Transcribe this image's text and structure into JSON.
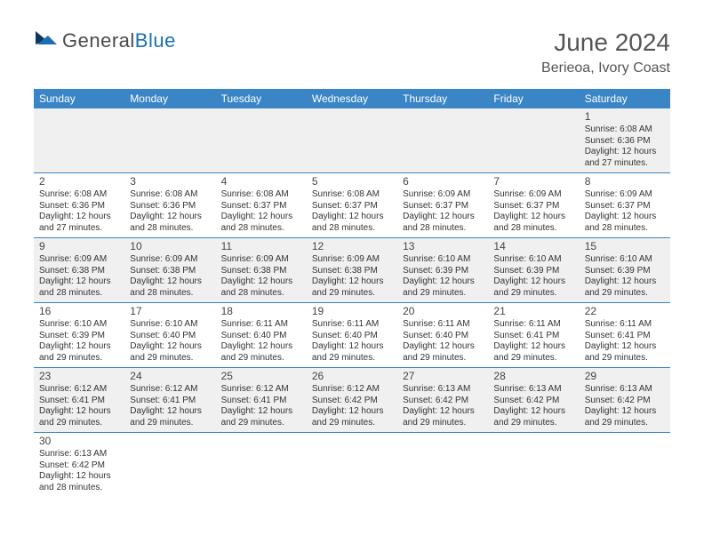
{
  "brand": {
    "part1": "General",
    "part2": "Blue"
  },
  "title": "June 2024",
  "location": "Berieoa, Ivory Coast",
  "colors": {
    "header_bg": "#3a85c6",
    "row_alt": "#f0f0f0",
    "text": "#333333",
    "brand_blue": "#1a6fb5"
  },
  "dayHeaders": [
    "Sunday",
    "Monday",
    "Tuesday",
    "Wednesday",
    "Thursday",
    "Friday",
    "Saturday"
  ],
  "weeks": [
    [
      null,
      null,
      null,
      null,
      null,
      null,
      {
        "n": "1",
        "sr": "Sunrise: 6:08 AM",
        "ss": "Sunset: 6:36 PM",
        "d1": "Daylight: 12 hours",
        "d2": "and 27 minutes."
      }
    ],
    [
      {
        "n": "2",
        "sr": "Sunrise: 6:08 AM",
        "ss": "Sunset: 6:36 PM",
        "d1": "Daylight: 12 hours",
        "d2": "and 27 minutes."
      },
      {
        "n": "3",
        "sr": "Sunrise: 6:08 AM",
        "ss": "Sunset: 6:36 PM",
        "d1": "Daylight: 12 hours",
        "d2": "and 28 minutes."
      },
      {
        "n": "4",
        "sr": "Sunrise: 6:08 AM",
        "ss": "Sunset: 6:37 PM",
        "d1": "Daylight: 12 hours",
        "d2": "and 28 minutes."
      },
      {
        "n": "5",
        "sr": "Sunrise: 6:08 AM",
        "ss": "Sunset: 6:37 PM",
        "d1": "Daylight: 12 hours",
        "d2": "and 28 minutes."
      },
      {
        "n": "6",
        "sr": "Sunrise: 6:09 AM",
        "ss": "Sunset: 6:37 PM",
        "d1": "Daylight: 12 hours",
        "d2": "and 28 minutes."
      },
      {
        "n": "7",
        "sr": "Sunrise: 6:09 AM",
        "ss": "Sunset: 6:37 PM",
        "d1": "Daylight: 12 hours",
        "d2": "and 28 minutes."
      },
      {
        "n": "8",
        "sr": "Sunrise: 6:09 AM",
        "ss": "Sunset: 6:37 PM",
        "d1": "Daylight: 12 hours",
        "d2": "and 28 minutes."
      }
    ],
    [
      {
        "n": "9",
        "sr": "Sunrise: 6:09 AM",
        "ss": "Sunset: 6:38 PM",
        "d1": "Daylight: 12 hours",
        "d2": "and 28 minutes."
      },
      {
        "n": "10",
        "sr": "Sunrise: 6:09 AM",
        "ss": "Sunset: 6:38 PM",
        "d1": "Daylight: 12 hours",
        "d2": "and 28 minutes."
      },
      {
        "n": "11",
        "sr": "Sunrise: 6:09 AM",
        "ss": "Sunset: 6:38 PM",
        "d1": "Daylight: 12 hours",
        "d2": "and 28 minutes."
      },
      {
        "n": "12",
        "sr": "Sunrise: 6:09 AM",
        "ss": "Sunset: 6:38 PM",
        "d1": "Daylight: 12 hours",
        "d2": "and 29 minutes."
      },
      {
        "n": "13",
        "sr": "Sunrise: 6:10 AM",
        "ss": "Sunset: 6:39 PM",
        "d1": "Daylight: 12 hours",
        "d2": "and 29 minutes."
      },
      {
        "n": "14",
        "sr": "Sunrise: 6:10 AM",
        "ss": "Sunset: 6:39 PM",
        "d1": "Daylight: 12 hours",
        "d2": "and 29 minutes."
      },
      {
        "n": "15",
        "sr": "Sunrise: 6:10 AM",
        "ss": "Sunset: 6:39 PM",
        "d1": "Daylight: 12 hours",
        "d2": "and 29 minutes."
      }
    ],
    [
      {
        "n": "16",
        "sr": "Sunrise: 6:10 AM",
        "ss": "Sunset: 6:39 PM",
        "d1": "Daylight: 12 hours",
        "d2": "and 29 minutes."
      },
      {
        "n": "17",
        "sr": "Sunrise: 6:10 AM",
        "ss": "Sunset: 6:40 PM",
        "d1": "Daylight: 12 hours",
        "d2": "and 29 minutes."
      },
      {
        "n": "18",
        "sr": "Sunrise: 6:11 AM",
        "ss": "Sunset: 6:40 PM",
        "d1": "Daylight: 12 hours",
        "d2": "and 29 minutes."
      },
      {
        "n": "19",
        "sr": "Sunrise: 6:11 AM",
        "ss": "Sunset: 6:40 PM",
        "d1": "Daylight: 12 hours",
        "d2": "and 29 minutes."
      },
      {
        "n": "20",
        "sr": "Sunrise: 6:11 AM",
        "ss": "Sunset: 6:40 PM",
        "d1": "Daylight: 12 hours",
        "d2": "and 29 minutes."
      },
      {
        "n": "21",
        "sr": "Sunrise: 6:11 AM",
        "ss": "Sunset: 6:41 PM",
        "d1": "Daylight: 12 hours",
        "d2": "and 29 minutes."
      },
      {
        "n": "22",
        "sr": "Sunrise: 6:11 AM",
        "ss": "Sunset: 6:41 PM",
        "d1": "Daylight: 12 hours",
        "d2": "and 29 minutes."
      }
    ],
    [
      {
        "n": "23",
        "sr": "Sunrise: 6:12 AM",
        "ss": "Sunset: 6:41 PM",
        "d1": "Daylight: 12 hours",
        "d2": "and 29 minutes."
      },
      {
        "n": "24",
        "sr": "Sunrise: 6:12 AM",
        "ss": "Sunset: 6:41 PM",
        "d1": "Daylight: 12 hours",
        "d2": "and 29 minutes."
      },
      {
        "n": "25",
        "sr": "Sunrise: 6:12 AM",
        "ss": "Sunset: 6:41 PM",
        "d1": "Daylight: 12 hours",
        "d2": "and 29 minutes."
      },
      {
        "n": "26",
        "sr": "Sunrise: 6:12 AM",
        "ss": "Sunset: 6:42 PM",
        "d1": "Daylight: 12 hours",
        "d2": "and 29 minutes."
      },
      {
        "n": "27",
        "sr": "Sunrise: 6:13 AM",
        "ss": "Sunset: 6:42 PM",
        "d1": "Daylight: 12 hours",
        "d2": "and 29 minutes."
      },
      {
        "n": "28",
        "sr": "Sunrise: 6:13 AM",
        "ss": "Sunset: 6:42 PM",
        "d1": "Daylight: 12 hours",
        "d2": "and 29 minutes."
      },
      {
        "n": "29",
        "sr": "Sunrise: 6:13 AM",
        "ss": "Sunset: 6:42 PM",
        "d1": "Daylight: 12 hours",
        "d2": "and 29 minutes."
      }
    ],
    [
      {
        "n": "30",
        "sr": "Sunrise: 6:13 AM",
        "ss": "Sunset: 6:42 PM",
        "d1": "Daylight: 12 hours",
        "d2": "and 28 minutes."
      },
      null,
      null,
      null,
      null,
      null,
      null
    ]
  ]
}
